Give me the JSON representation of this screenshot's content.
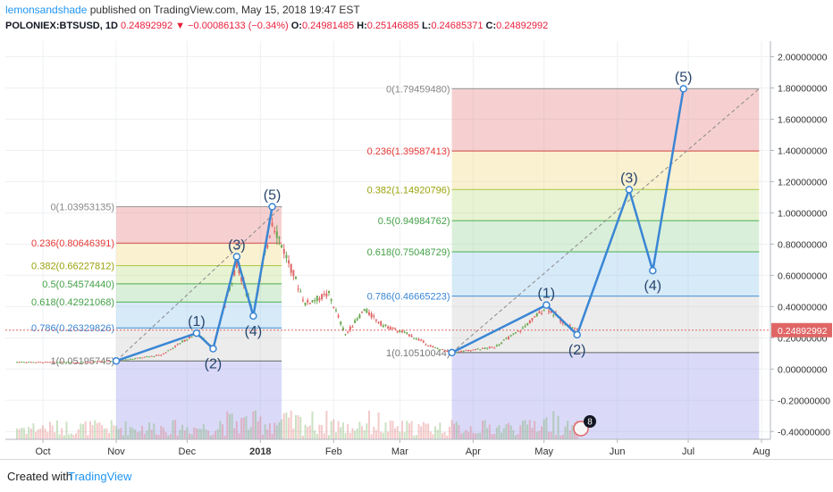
{
  "header": {
    "author": "lemonsandshade",
    "published": "published on TradingView.com, May 15, 2018 19:47 EST",
    "symbol": "POLONIEX:BTSUSD, 1D",
    "last": "0.24892992",
    "change": "−0.00086133 (−0.34%)",
    "open_label": "O:",
    "open": "0.24981485",
    "high_label": "H:",
    "high": "0.25146885",
    "low_label": "L:",
    "low": "0.24685371",
    "close_label": "C:",
    "close": "0.24892992"
  },
  "footer": {
    "created": "Created with",
    "brand": "TradingView"
  },
  "colors": {
    "wave": "#3a86d4",
    "up": "#6aa84f",
    "down": "#e06666",
    "price_line": "#e06666"
  },
  "chart_data": {
    "type": "line",
    "x_ticks": [
      "Oct",
      "Nov",
      "Dec",
      "2018",
      "Feb",
      "Mar",
      "Apr",
      "May",
      "Jun",
      "Jul",
      "Aug"
    ],
    "y_ticks": [
      "2.00000000",
      "1.80000000",
      "1.60000000",
      "1.40000000",
      "1.20000000",
      "1.00000000",
      "0.80000000",
      "0.60000000",
      "0.40000000",
      "0.20000000",
      "0.00000000",
      "-0.20000000",
      "-0.40000000"
    ],
    "ylim": [
      -0.45,
      2.1
    ],
    "current_price_label": "0.24892992",
    "fib_sets": [
      {
        "x_start": "2017-11-01",
        "x_end": "2018-01-10",
        "levels": [
          {
            "label": "0(1.03953135)",
            "value": 1.03953135
          },
          {
            "label": "0.236(0.80646391)",
            "value": 0.80646391
          },
          {
            "label": "0.382(0.66227812)",
            "value": 0.66227812
          },
          {
            "label": "0.5(0.54574440)",
            "value": 0.5457444
          },
          {
            "label": "0.618(0.42921068)",
            "value": 0.42921068
          },
          {
            "label": "0.786(0.26329826)",
            "value": 0.26329826
          },
          {
            "label": "1(0.05195745)",
            "value": 0.05195745
          }
        ]
      },
      {
        "x_start": "2018-03-23",
        "x_end": "2018-07-31",
        "levels": [
          {
            "label": "0(1.79459480)",
            "value": 1.7945948
          },
          {
            "label": "0.236(1.39587413)",
            "value": 1.39587413
          },
          {
            "label": "0.382(1.14920796)",
            "value": 1.14920796
          },
          {
            "label": "0.5(0.94984762)",
            "value": 0.94984762
          },
          {
            "label": "0.618(0.75048729)",
            "value": 0.75048729
          },
          {
            "label": "0.786(0.46665223)",
            "value": 0.46665223
          },
          {
            "label": "1(0.10510044)",
            "value": 0.10510044
          }
        ]
      }
    ],
    "wave_sets": [
      {
        "points": [
          {
            "x": "2017-11-01",
            "y": 0.052,
            "label": ""
          },
          {
            "x": "2017-12-05",
            "y": 0.23,
            "label": "(1)"
          },
          {
            "x": "2017-12-12",
            "y": 0.13,
            "label": "(2)"
          },
          {
            "x": "2017-12-22",
            "y": 0.72,
            "label": "(3)"
          },
          {
            "x": "2017-12-29",
            "y": 0.34,
            "label": "(4)"
          },
          {
            "x": "2018-01-06",
            "y": 1.0395,
            "label": "(5)"
          }
        ]
      },
      {
        "points": [
          {
            "x": "2018-03-23",
            "y": 0.105,
            "label": ""
          },
          {
            "x": "2018-05-02",
            "y": 0.41,
            "label": "(1)"
          },
          {
            "x": "2018-05-15",
            "y": 0.22,
            "label": "(2)"
          },
          {
            "x": "2018-06-06",
            "y": 1.149,
            "label": "(3)"
          },
          {
            "x": "2018-06-16",
            "y": 0.63,
            "label": "(4)"
          },
          {
            "x": "2018-06-29",
            "y": 1.7946,
            "label": "(5)"
          }
        ]
      }
    ],
    "events_badge": "8"
  }
}
